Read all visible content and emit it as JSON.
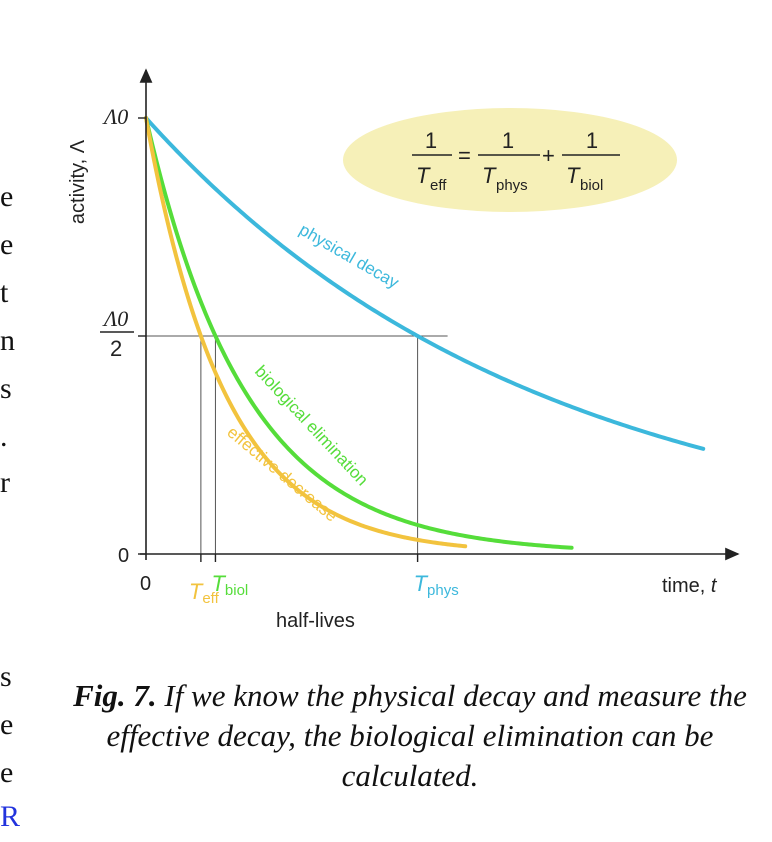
{
  "left_text_fragments": [
    "e",
    "e",
    "t",
    "n",
    "s",
    ".",
    "r",
    "s",
    "e",
    "e",
    "R"
  ],
  "chart_data": {
    "type": "line",
    "xlabel_prefix": "time, ",
    "xlabel_var": "t",
    "ylabel": "activity, Λ",
    "ytick_top": "Λ0",
    "ytick_half_num": "Λ0",
    "ytick_half_den": "2",
    "ytick_zero": "0",
    "xtick_zero": "0",
    "half_lives_label": "half-lives",
    "xlim": [
      0,
      1
    ],
    "ylim": [
      0,
      1
    ],
    "half_level": 0.5,
    "series": [
      {
        "name": "physical decay",
        "label": "physical decay",
        "color": "#3cb8dc",
        "half_life": 0.485,
        "x_end": 0.995,
        "marker_letter": "T",
        "marker_sub": "phys"
      },
      {
        "name": "biological elimination",
        "label": "biological elimination",
        "color": "#55dd3a",
        "half_life": 0.124,
        "x_end": 0.76,
        "marker_letter": "T",
        "marker_sub": "biol"
      },
      {
        "name": "effective decrease",
        "label": "effective decrease",
        "color": "#f2c33e",
        "half_life": 0.098,
        "x_end": 0.57,
        "marker_letter": "T",
        "marker_sub": "eff"
      }
    ],
    "formula": {
      "numerator": "1",
      "lhs_T": "T",
      "lhs_sub": "eff",
      "eq": "=",
      "plus": "+",
      "t1_T": "T",
      "t1_sub": "phys",
      "t2_T": "T",
      "t2_sub": "biol"
    },
    "formula_bg": "#f6f0b8",
    "axis_color": "#222222"
  },
  "caption": {
    "fig_label": "Fig. 7.",
    "text": "If we know the physical decay and measure the effective decay, the biological elimination can be calculated."
  }
}
